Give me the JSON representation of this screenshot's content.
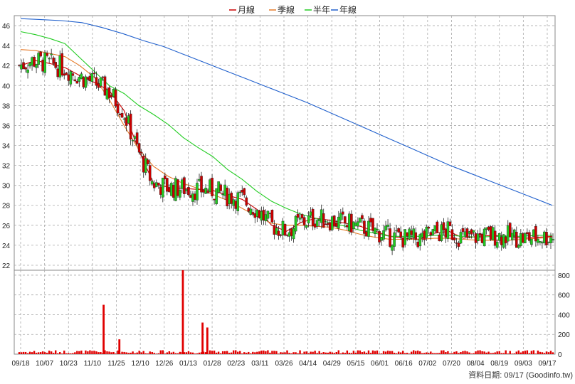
{
  "chart_data": {
    "type": "candlestick",
    "legend": [
      {
        "name": "月線",
        "color": "#cc0000"
      },
      {
        "name": "季線",
        "color": "#e67a28"
      },
      {
        "name": "半年",
        "color": "#22cc22"
      },
      {
        "name": "年線",
        "color": "#1f5fcc"
      }
    ],
    "up_color": "#22cc22",
    "down_color": "#cc0000",
    "grid": true,
    "price_axis": {
      "ticks": [
        22,
        24,
        26,
        28,
        30,
        32,
        34,
        36,
        38,
        40,
        42,
        44,
        46
      ],
      "range": [
        21.5,
        47
      ]
    },
    "volume_axis": {
      "ticks": [
        0,
        200,
        400,
        600,
        800
      ],
      "range": [
        0,
        850
      ]
    },
    "x_tick_labels": [
      "09/18",
      "10/07",
      "10/23",
      "11/10",
      "11/25",
      "12/10",
      "12/26",
      "01/13",
      "01/28",
      "02/23",
      "03/11",
      "03/26",
      "04/14",
      "04/29",
      "05/15",
      "06/01",
      "06/16",
      "07/02",
      "07/20",
      "08/04",
      "08/19",
      "09/03",
      "09/17"
    ],
    "moving_averages": {
      "月線": [
        42.0,
        42.5,
        42.2,
        41.8,
        41.0,
        40.3,
        39.5,
        37.5,
        33.5,
        30.2,
        29.8,
        29.7,
        29.6,
        29.5,
        29.0,
        28.6,
        27.6,
        26.0,
        25.4,
        26.3,
        26.7,
        26.5,
        26.2,
        25.9,
        25.4,
        24.9,
        24.7,
        24.6,
        25.2,
        25.4,
        24.7,
        24.9,
        25.0,
        24.9,
        24.7,
        24.8,
        24.9
      ],
      "季線": [
        43.6,
        43.5,
        43.2,
        42.9,
        42.0,
        40.8,
        38.6,
        36.0,
        33.6,
        31.9,
        30.9,
        30.2,
        29.7,
        29.1,
        28.5,
        27.7,
        26.9,
        26.2,
        26.0,
        26.0,
        25.9,
        25.8,
        25.5,
        25.1,
        24.8,
        24.6,
        24.6,
        24.6,
        24.7,
        24.7,
        24.6,
        24.5,
        24.5,
        24.5,
        24.6,
        24.7,
        24.8
      ],
      "半年": [
        45.4,
        45.1,
        44.7,
        44.2,
        42.8,
        41.4,
        40.0,
        39.2,
        38.0,
        37.1,
        36.1,
        34.8,
        33.8,
        32.9,
        31.6,
        30.6,
        29.4,
        28.4,
        27.7,
        27.1,
        26.7,
        26.2,
        25.9,
        25.5,
        25.2,
        24.9,
        24.9,
        24.9,
        25.0,
        25.0,
        24.9,
        24.8,
        24.9,
        24.9,
        24.9,
        25.0,
        25.0
      ],
      "年線": [
        46.7,
        46.6,
        46.5,
        46.3,
        45.8,
        45.2,
        44.5,
        43.9,
        43.1,
        42.3,
        41.5,
        40.7,
        39.9,
        39.1,
        38.3,
        37.4,
        36.5,
        35.6,
        34.7,
        33.8,
        32.9,
        32.0,
        31.2,
        30.4,
        29.6,
        28.8,
        28.0
      ]
    },
    "volume_spikes": [
      {
        "date": "11/17",
        "volume": 500
      },
      {
        "date": "11/27",
        "volume": 150
      },
      {
        "date": "01/09",
        "volume": 850
      },
      {
        "date": "01/22",
        "volume": 320
      },
      {
        "date": "01/25",
        "volume": 270
      }
    ]
  },
  "source_note": "資料日期: 09/17  (Goodinfo.tw)"
}
